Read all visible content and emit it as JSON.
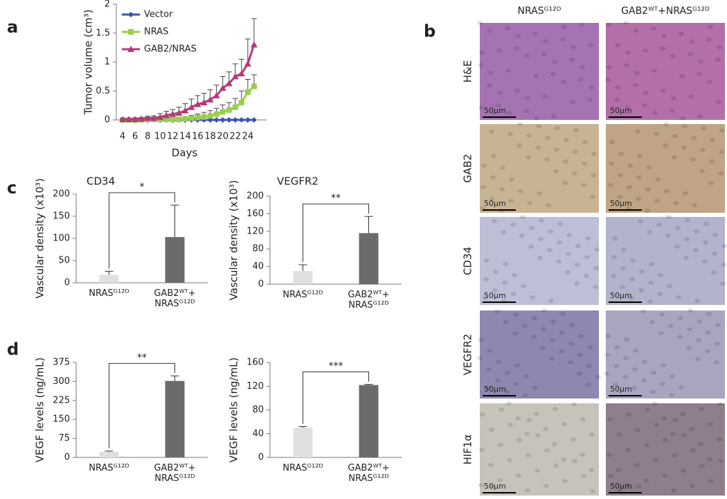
{
  "chart_data": [
    {
      "type": "line",
      "x_label": "Days",
      "y_label": "Tumor volume (cm³)",
      "x": [
        4,
        5,
        6,
        7,
        8,
        9,
        10,
        11,
        12,
        13,
        14,
        15,
        16,
        17,
        18,
        19,
        20,
        21,
        22,
        23,
        24,
        25
      ],
      "xlim": [
        3,
        27
      ],
      "xticks": [
        4,
        6,
        8,
        10,
        12,
        14,
        16,
        18,
        20,
        22,
        24
      ],
      "ylim": [
        0,
        2
      ],
      "yticks": [
        0,
        0.5,
        1,
        1.5,
        2
      ],
      "legend": "top-left",
      "series": [
        {
          "name": "Vector",
          "color": "#3a4fb5",
          "marker": "diamond",
          "values": [
            0,
            0,
            0,
            0,
            0,
            0,
            0,
            0,
            0,
            0,
            0,
            0,
            0,
            0,
            0,
            0,
            0,
            0,
            0,
            0,
            0,
            0
          ]
        },
        {
          "name": "NRAS",
          "color": "#9acd4c",
          "marker": "square",
          "values": [
            0,
            0,
            0,
            0,
            0.01,
            0.01,
            0.01,
            0.01,
            0.01,
            0.01,
            0.02,
            0.03,
            0.04,
            0.05,
            0.07,
            0.1,
            0.14,
            0.17,
            0.22,
            0.3,
            0.48,
            0.58
          ],
          "errors": [
            0.01,
            0.01,
            0.01,
            0.01,
            0.01,
            0.01,
            0.02,
            0.02,
            0.02,
            0.03,
            0.04,
            0.05,
            0.06,
            0.08,
            0.09,
            0.1,
            0.12,
            0.13,
            0.15,
            0.2,
            0.22,
            0.2
          ]
        },
        {
          "name": "GAB2/NRAS",
          "color": "#b33b78",
          "marker": "triangle",
          "values": [
            0.01,
            0.01,
            0.01,
            0.02,
            0.03,
            0.03,
            0.05,
            0.08,
            0.1,
            0.12,
            0.16,
            0.22,
            0.27,
            0.3,
            0.35,
            0.42,
            0.55,
            0.63,
            0.75,
            0.8,
            0.97,
            1.3
          ],
          "errors": [
            0.01,
            0.01,
            0.02,
            0.02,
            0.03,
            0.04,
            0.06,
            0.07,
            0.08,
            0.1,
            0.12,
            0.14,
            0.15,
            0.16,
            0.17,
            0.18,
            0.2,
            0.2,
            0.22,
            0.25,
            0.43,
            0.45
          ]
        }
      ]
    },
    {
      "type": "bar",
      "title": "CD34",
      "y_label": "Vascular density (x10³)",
      "categories": [
        "NRASᴳ¹²ᴰ",
        "GAB2ᵂᵀ+ NRASᴳ¹²ᴰ"
      ],
      "values": [
        18,
        103
      ],
      "errors": [
        8,
        72
      ],
      "colors": [
        "#e0e0e0",
        "#6b6b6b"
      ],
      "ylim": [
        0,
        200
      ],
      "yticks": [
        0,
        50,
        100,
        150,
        200
      ],
      "significance": "*"
    },
    {
      "type": "bar",
      "title": "VEGFR2",
      "y_label": "Vascular density (x10³)",
      "categories": [
        "NRASᴳ¹²ᴰ",
        "GAB2ᵂᵀ+ NRASᴳ¹²ᴰ"
      ],
      "values": [
        30,
        116
      ],
      "errors": [
        14,
        38
      ],
      "colors": [
        "#e0e0e0",
        "#6b6b6b"
      ],
      "ylim": [
        0,
        200
      ],
      "yticks": [
        0,
        40,
        80,
        120,
        160,
        200
      ],
      "significance": "**"
    },
    {
      "type": "bar",
      "y_label": "VEGF levels (ng/mL)",
      "categories": [
        "NRASᴳ¹²ᴰ",
        "GAB2ᵂᵀ+ NRASᴳ¹²ᴰ"
      ],
      "values": [
        22,
        302
      ],
      "errors": [
        3,
        20
      ],
      "colors": [
        "#e0e0e0",
        "#6b6b6b"
      ],
      "ylim": [
        0,
        375
      ],
      "yticks": [
        0,
        75,
        150,
        225,
        300,
        375
      ],
      "significance": "**"
    },
    {
      "type": "bar",
      "y_label": "VEGF levels (ng/mL)",
      "categories": [
        "NRASᴳ¹²ᴰ",
        "GAB2ᵂᵀ+ NRASᴳ¹²ᴰ"
      ],
      "values": [
        50,
        122
      ],
      "errors": [
        2,
        1
      ],
      "colors": [
        "#e0e0e0",
        "#6b6b6b"
      ],
      "ylim": [
        0,
        160
      ],
      "yticks": [
        0,
        40,
        80,
        120,
        160
      ],
      "significance": "***"
    }
  ],
  "figure": {
    "panel_labels": [
      "a",
      "b",
      "c",
      "d"
    ],
    "images": {
      "columns": [
        "NRASᴳ¹²ᴰ",
        "GAB2ᵂᵀ+NRASᴳ¹²ᴰ"
      ],
      "rows": [
        "H&E",
        "GAB2",
        "CD34",
        "VEGFR2",
        "HIF1α"
      ],
      "scale_bar": "50µm"
    }
  }
}
